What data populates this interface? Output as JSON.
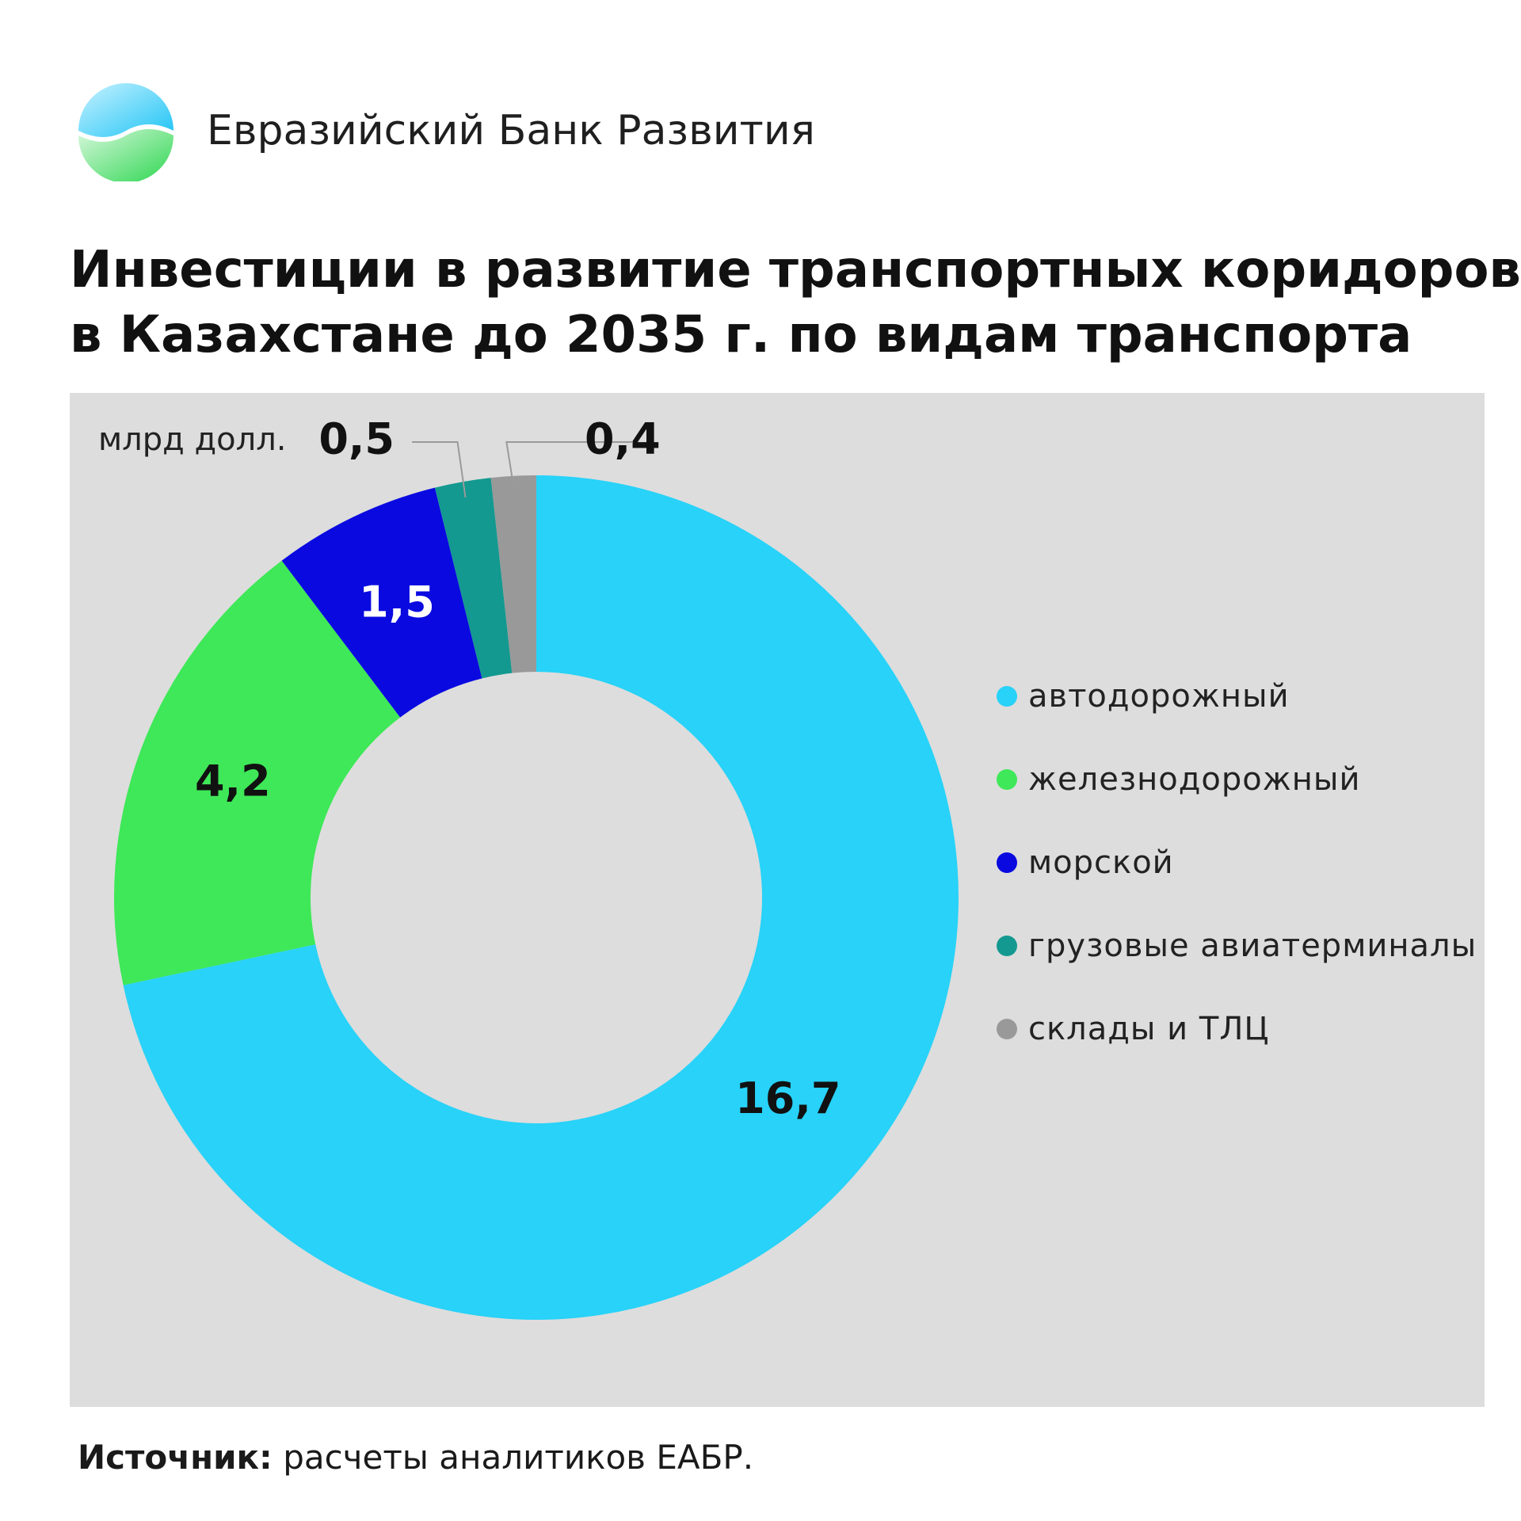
{
  "header": {
    "bank_name": "Евразийский Банк Развития"
  },
  "title": {
    "line1": "Инвестиции в развитие транспортных коридоров,",
    "line2": "в Казахстане до 2035 г. по видам транспорта"
  },
  "chart_data": {
    "type": "pie",
    "variant": "donut",
    "unit_label": "млрд долл.",
    "categories": [
      "автодорожный",
      "железнодорожный",
      "морской",
      "грузовые авиатерминалы",
      "склады и ТЛЦ"
    ],
    "values": [
      16.7,
      4.2,
      1.5,
      0.5,
      0.4
    ],
    "value_labels": [
      "16,7",
      "4,2",
      "1,5",
      "0,5",
      "0,4"
    ],
    "colors": [
      "#28d2f8",
      "#3ee858",
      "#0a0ae0",
      "#139990",
      "#999999"
    ],
    "legend_position": "right"
  },
  "source": {
    "label": "Источник:",
    "text": "расчеты аналитиков ЕАБР."
  }
}
